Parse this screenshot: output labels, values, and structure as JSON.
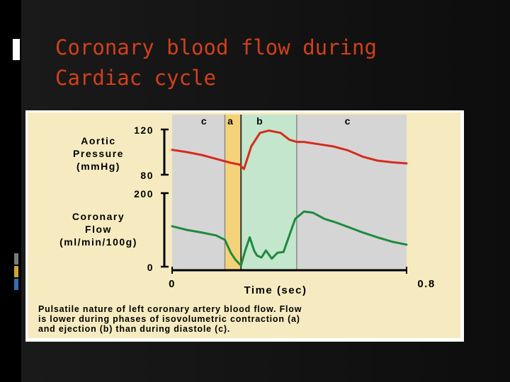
{
  "slide": {
    "title": "Coronary blood flow during\nCardiac cycle"
  },
  "colors": {
    "title": "#d2401b",
    "figure_bg": "#f6ebc0",
    "diastole_band": "#d5d5d5",
    "isovolumetric_band": "#f4d27a",
    "ejection_band": "#c3e6cc",
    "aortic_line": "#d52b1e",
    "coronary_line": "#1e8a3c"
  },
  "chart_data": {
    "type": "line",
    "xlabel": "Time (sec)",
    "xlim": [
      0,
      0.8
    ],
    "x_ticks": [
      "0",
      "0.8"
    ],
    "phases": [
      {
        "label": "c",
        "start": 0.0,
        "end": 0.18
      },
      {
        "label": "a",
        "start": 0.18,
        "end": 0.235
      },
      {
        "label": "b",
        "start": 0.235,
        "end": 0.425
      },
      {
        "label": "c",
        "start": 0.425,
        "end": 0.8
      }
    ],
    "panels": [
      {
        "ylabel": "Aortic\nPressure\n(mmHg)",
        "ylim": [
          80,
          120
        ],
        "y_ticks": [
          "120",
          "80"
        ],
        "series": [
          {
            "x": [
              0.0,
              0.05,
              0.1,
              0.15,
              0.2,
              0.23,
              0.245,
              0.27,
              0.3,
              0.33,
              0.37,
              0.4,
              0.425,
              0.45,
              0.5,
              0.55,
              0.6,
              0.65,
              0.7,
              0.75,
              0.8
            ],
            "y": [
              102,
              100,
              97.5,
              94,
              90.5,
              89,
              85,
              105,
              117,
              119,
              117,
              111,
              109,
              109,
              107,
              105,
              101.5,
              96,
              92.5,
              91,
              90
            ]
          }
        ]
      },
      {
        "ylabel": "Coronary\nFlow\n(ml/min/100g)",
        "ylim": [
          0,
          200
        ],
        "y_ticks": [
          "200",
          "0"
        ],
        "series": [
          {
            "x": [
              0.0,
              0.05,
              0.1,
              0.15,
              0.18,
              0.2,
              0.215,
              0.235,
              0.25,
              0.265,
              0.28,
              0.29,
              0.305,
              0.32,
              0.34,
              0.36,
              0.38,
              0.4,
              0.42,
              0.45,
              0.48,
              0.52,
              0.56,
              0.6,
              0.65,
              0.7,
              0.75,
              0.8
            ],
            "y": [
              110,
              100,
              93,
              85,
              73,
              38,
              20,
              3,
              45,
              80,
              43,
              30,
              25,
              44,
              22,
              38,
              40,
              85,
              130,
              150,
              147,
              130,
              120,
              108,
              93,
              80,
              68,
              60
            ]
          }
        ]
      }
    ],
    "caption": "Pulsatile nature of left coronary artery blood flow. Flow\nis lower during phases of isovolumetric contraction (a)\nand ejection (b) than during diastole (c)."
  }
}
